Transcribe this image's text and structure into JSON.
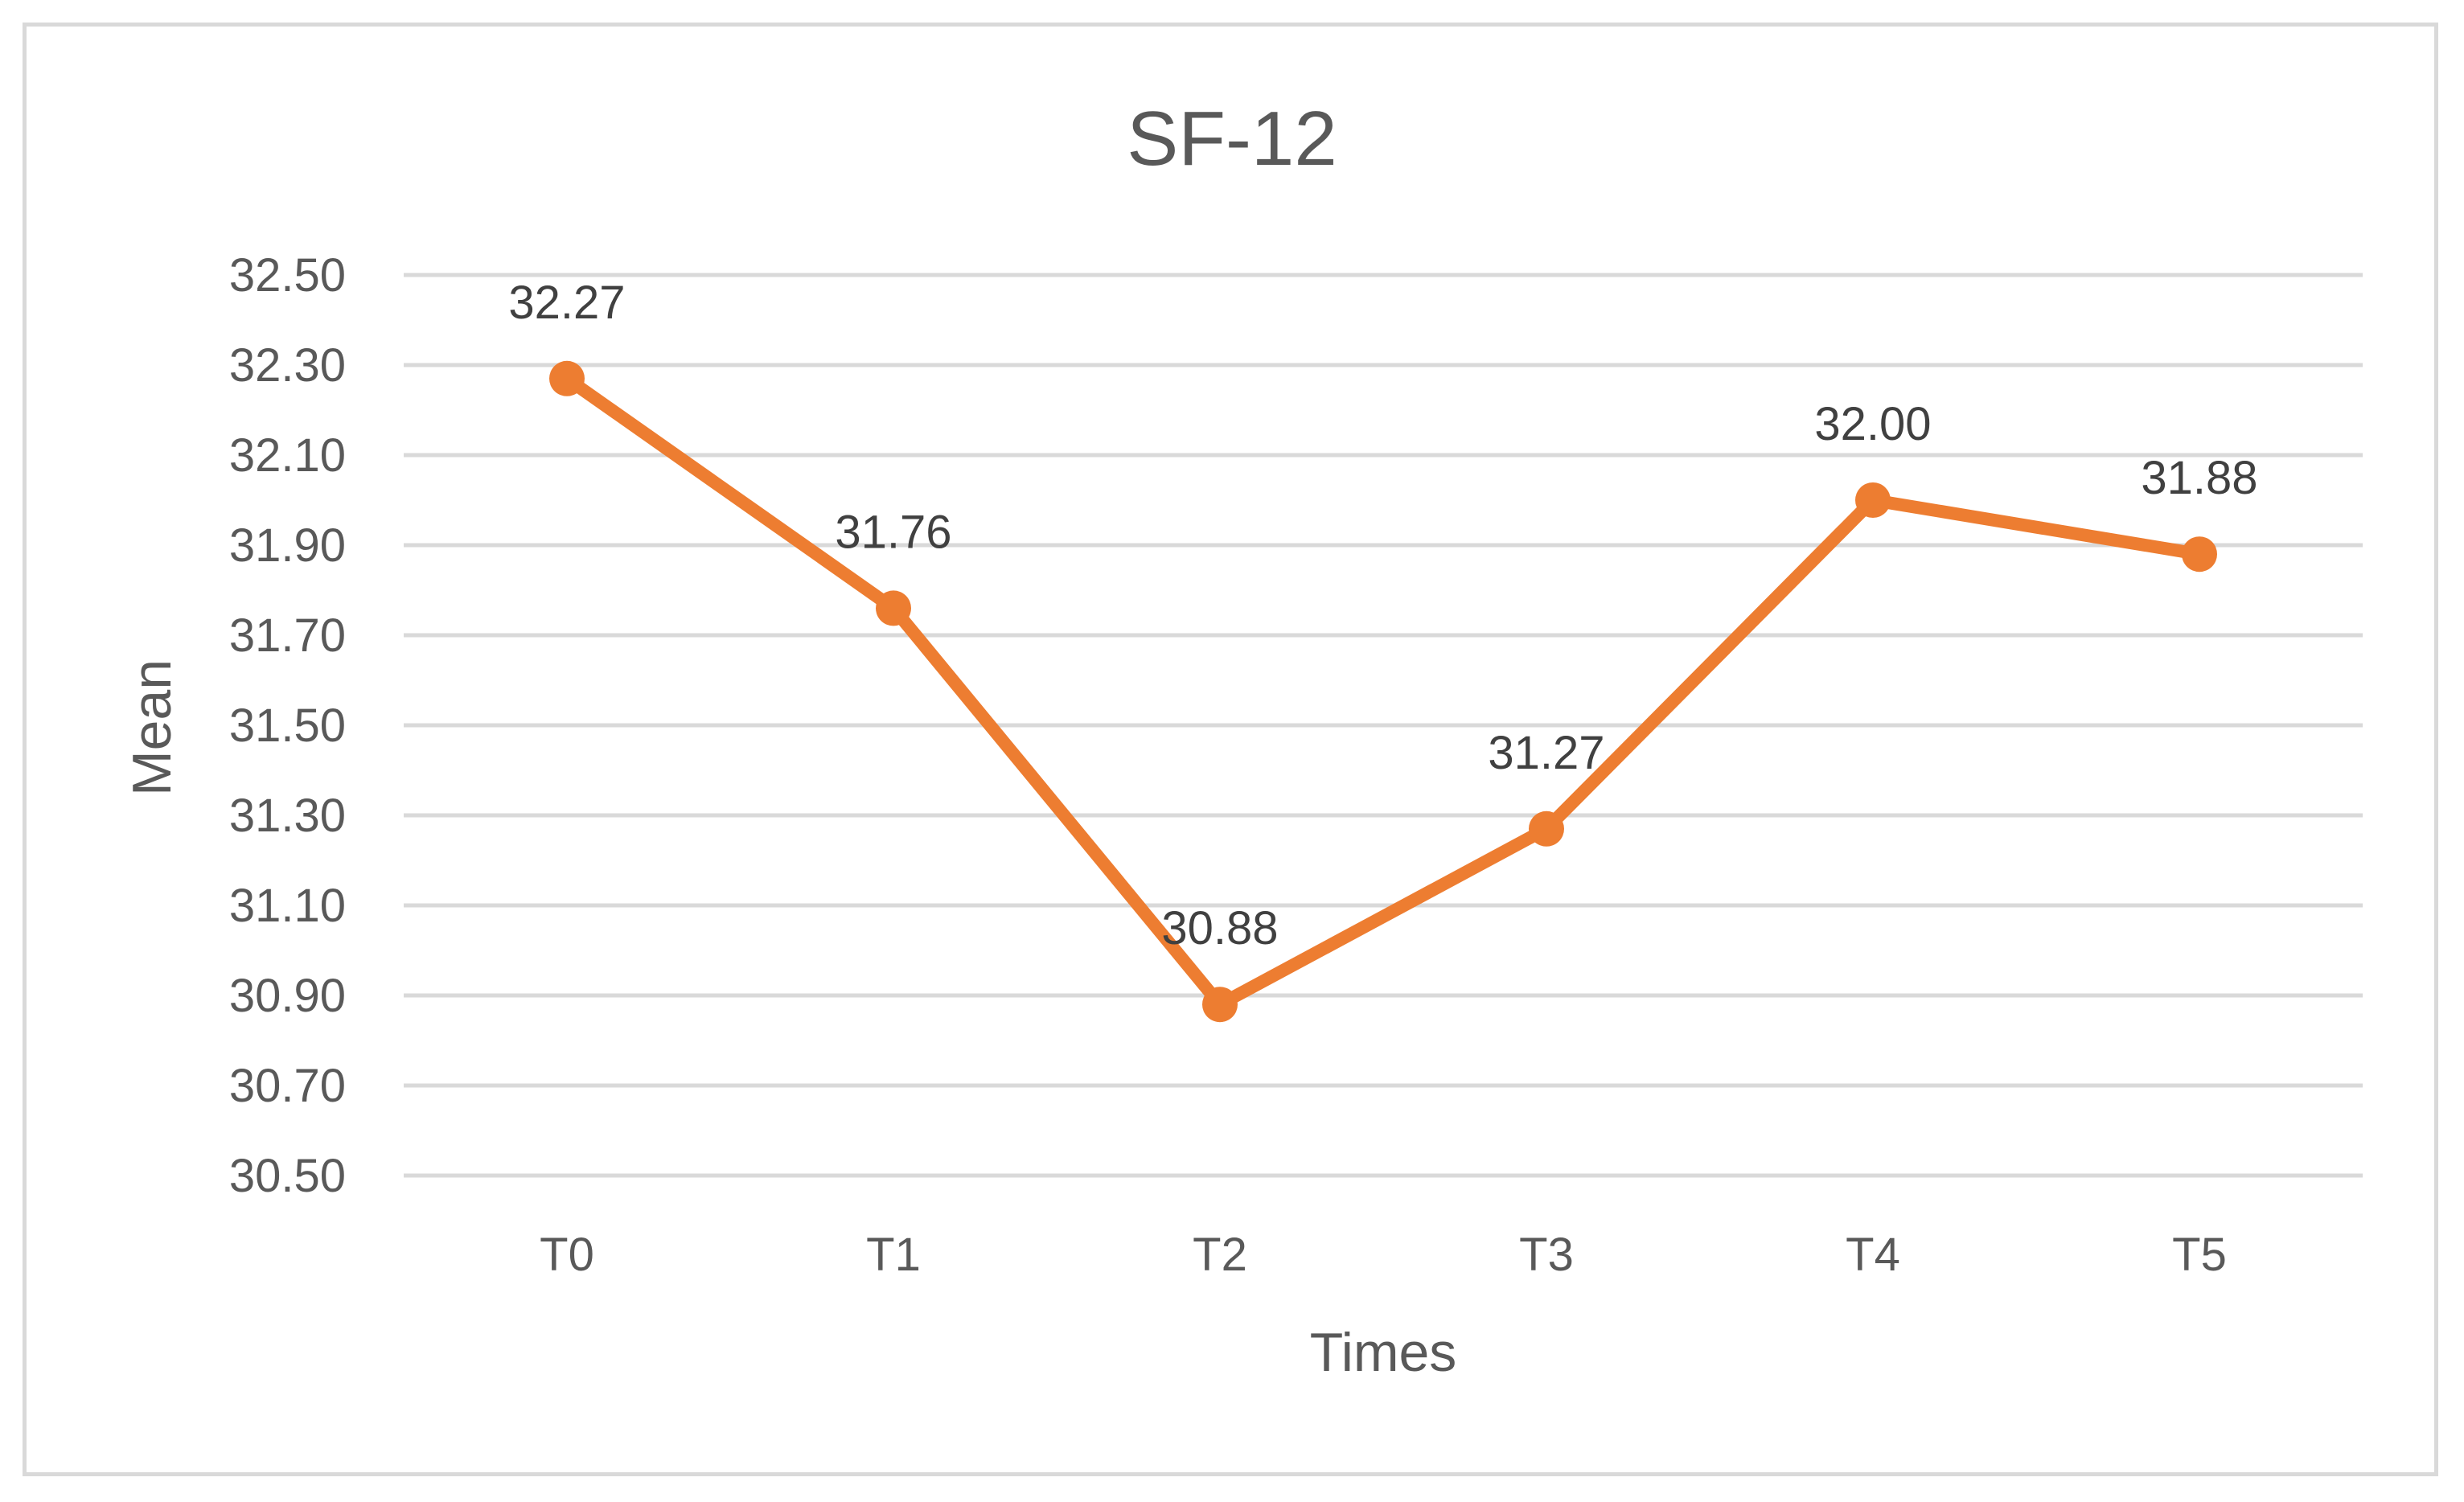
{
  "chart_data": {
    "type": "line",
    "title": "SF-12",
    "xlabel": "Times",
    "ylabel": "Mean",
    "categories": [
      "T0",
      "T1",
      "T2",
      "T3",
      "T4",
      "T5"
    ],
    "series": [
      {
        "values": [
          32.27,
          31.76,
          30.88,
          31.27,
          32.0,
          31.88
        ],
        "data_labels": [
          "32.27",
          "31.76",
          "30.88",
          "31.27",
          "32.00",
          "31.88"
        ],
        "color": "#ed7d31",
        "marker": "circle"
      }
    ],
    "ylim": [
      30.5,
      32.5
    ],
    "y_ticks": [
      30.5,
      30.7,
      30.9,
      31.1,
      31.3,
      31.5,
      31.7,
      31.9,
      32.1,
      32.3,
      32.5
    ],
    "y_tick_labels": [
      "30.50",
      "30.70",
      "30.90",
      "31.10",
      "31.30",
      "31.50",
      "31.70",
      "31.90",
      "32.10",
      "32.30",
      "32.50"
    ],
    "grid": true,
    "grid_color": "#d9d9d9",
    "text_color": "#595959",
    "legend": "none"
  }
}
